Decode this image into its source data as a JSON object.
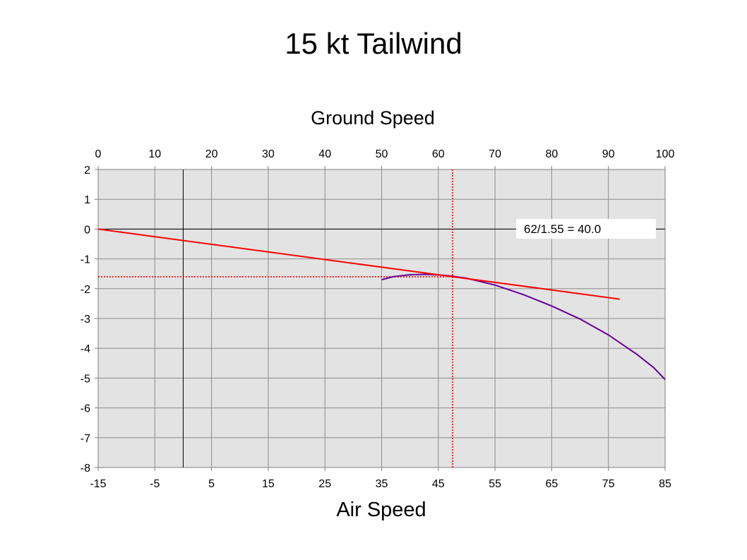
{
  "slide_title": "15 kt Tailwind",
  "chart_data": {
    "type": "line",
    "top_axis_title": "Ground Speed",
    "bottom_axis_title": "Air Speed",
    "top_ticks": [
      "0",
      "10",
      "20",
      "30",
      "40",
      "50",
      "60",
      "70",
      "80",
      "90",
      "100"
    ],
    "bottom_ticks": [
      "-15",
      "-5",
      "5",
      "15",
      "25",
      "35",
      "45",
      "55",
      "65",
      "75",
      "85"
    ],
    "y_ticks": [
      "2",
      "1",
      "0",
      "-1",
      "-2",
      "-3",
      "-4",
      "-5",
      "-6",
      "-7",
      "-8"
    ],
    "xlim": [
      -15,
      85
    ],
    "ylim": [
      -8,
      2
    ],
    "grid": true,
    "annotation": "62/1.55 = 40.0",
    "zero_line_y": 0,
    "wind_line_x": 0,
    "reference": {
      "x": 47.5,
      "y": -1.6
    },
    "series": [
      {
        "color": "#660099",
        "points": [
          [
            35,
            -1.7
          ],
          [
            37,
            -1.6
          ],
          [
            40,
            -1.53
          ],
          [
            43,
            -1.52
          ],
          [
            46,
            -1.55
          ],
          [
            47.5,
            -1.58
          ],
          [
            50,
            -1.65
          ],
          [
            55,
            -1.88
          ],
          [
            60,
            -2.2
          ],
          [
            65,
            -2.58
          ],
          [
            70,
            -3.02
          ],
          [
            75,
            -3.55
          ],
          [
            80,
            -4.2
          ],
          [
            83,
            -4.65
          ],
          [
            85,
            -5.05
          ]
        ]
      },
      {
        "color": "#ff0000",
        "points": [
          [
            -15,
            0
          ],
          [
            77,
            -2.35
          ]
        ]
      }
    ]
  }
}
